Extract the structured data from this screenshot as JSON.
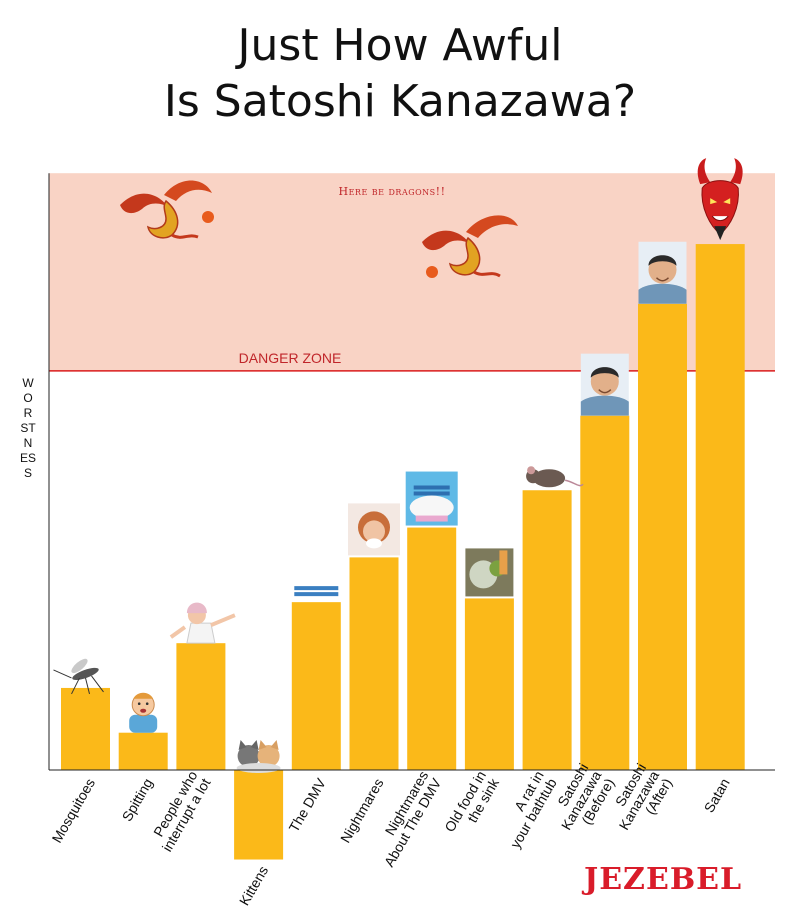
{
  "title_lines": [
    "Just How Awful",
    "Is Satoshi Kanazawa?"
  ],
  "brand": "JEZEBEL",
  "chart_data": {
    "type": "bar",
    "title": "Just How Awful Is Satoshi Kanazawa?",
    "ylabel": "WORSTNESS",
    "xlabel": "",
    "ylim": [
      -24,
      160
    ],
    "grid": false,
    "categories": [
      [
        "Mosquitoes"
      ],
      [
        "Spitting"
      ],
      [
        "People who",
        "interrupt a lot"
      ],
      [
        "Kittens"
      ],
      [
        "The DMV"
      ],
      [
        "Nightmares"
      ],
      [
        "Nightmares",
        "About The DMV"
      ],
      [
        "Old food in",
        "the sink"
      ],
      [
        "A rat in",
        "your bathtub"
      ],
      [
        "Satoshi",
        "Kanazawa",
        "(Before)"
      ],
      [
        "Satoshi",
        "Kanazawa",
        "(After)"
      ],
      [
        "Satan"
      ]
    ],
    "values": [
      22,
      10,
      34,
      -24,
      45,
      57,
      65,
      46,
      75,
      95,
      125,
      141
    ],
    "colors": {
      "bar": "#fbb919",
      "danger_fill": "#f9d3c5",
      "danger_line": "#d91c1c",
      "label_red": "#c0262a"
    },
    "danger_zone": {
      "from": 107,
      "to": 160,
      "label": "DANGER ZONE",
      "note": "Here be dragons!!"
    },
    "icons": [
      "mosquito-icon",
      "crying-child-icon",
      "shouting-woman-icon",
      "kittens-icon",
      "dmv-logo-icon",
      "nightmare-face-icon",
      "dmv-dream-icon",
      "dirty-dishes-icon",
      "rat-icon",
      "kanazawa-photo-icon",
      "kanazawa-photo-icon",
      "devil-icon"
    ]
  }
}
